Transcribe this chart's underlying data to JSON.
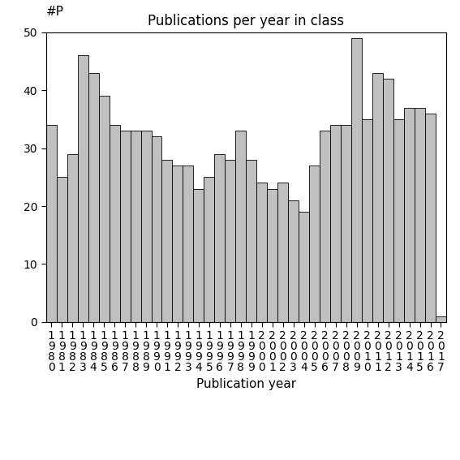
{
  "title": "Publications per year in class",
  "xlabel": "Publication year",
  "ylabel": "#P",
  "years": [
    1980,
    1981,
    1982,
    1983,
    1984,
    1985,
    1986,
    1987,
    1988,
    1989,
    1990,
    1991,
    1992,
    1993,
    1994,
    1995,
    1996,
    1997,
    1998,
    1999,
    2000,
    2001,
    2002,
    2003,
    2004,
    2005,
    2006,
    2007,
    2008,
    2009,
    2010,
    2011,
    2012,
    2013,
    2014,
    2015,
    2016,
    2017
  ],
  "values": [
    34,
    25,
    29,
    46,
    43,
    39,
    34,
    33,
    33,
    33,
    32,
    28,
    27,
    27,
    23,
    25,
    29,
    28,
    33,
    28,
    24,
    23,
    24,
    21,
    19,
    27,
    33,
    34,
    34,
    49,
    35,
    43,
    42,
    35,
    37,
    37,
    36,
    1
  ],
  "ylim": [
    0,
    50
  ],
  "yticks": [
    0,
    10,
    20,
    30,
    40,
    50
  ],
  "bar_color": "#c0c0c0",
  "bar_edgecolor": "#000000",
  "background_color": "#ffffff",
  "title_fontsize": 12,
  "axis_label_fontsize": 11,
  "tick_fontsize": 10
}
